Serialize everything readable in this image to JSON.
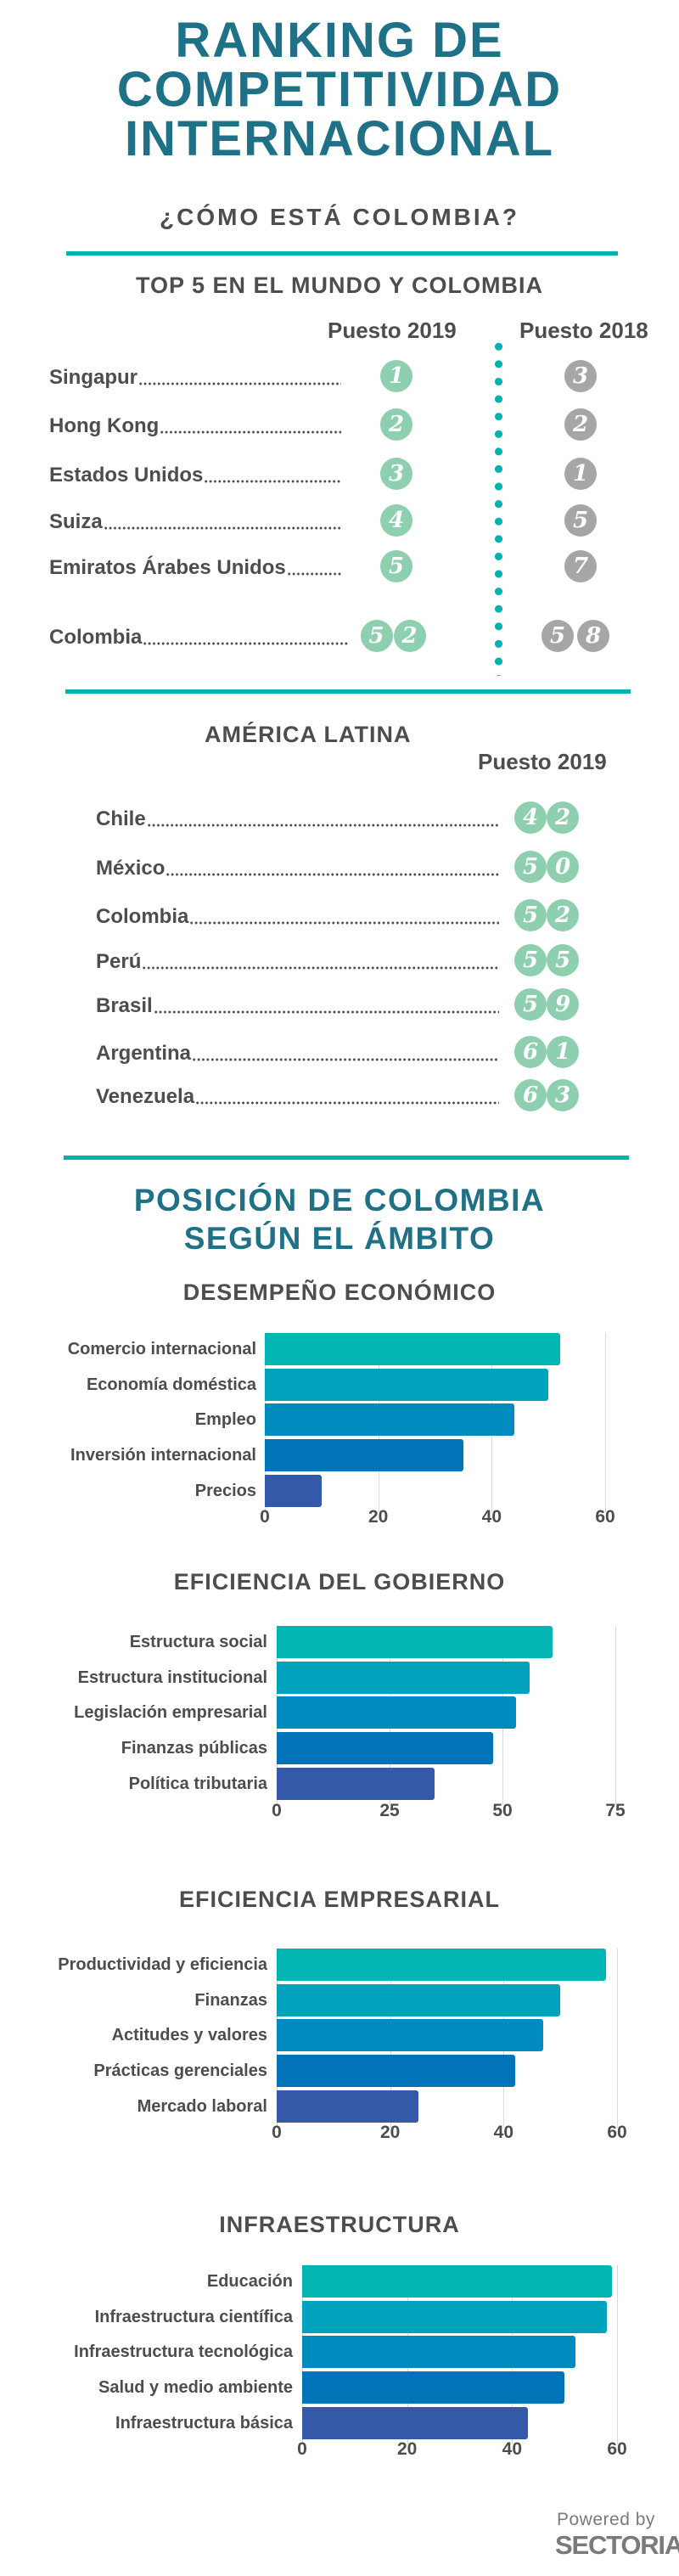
{
  "header": {
    "title_lines": [
      "RANKING DE",
      "COMPETITIVIDAD",
      "INTERNACIONAL"
    ],
    "question": "¿CÓMO ESTÁ COLOMBIA?"
  },
  "colors": {
    "title": "#1e7186",
    "text": "#4d4d4d",
    "rule": "#00b3b1",
    "badge_2019": "#8ecfb0",
    "badge_2018": "#a6a6a6"
  },
  "world": {
    "title": "TOP 5 EN EL MUNDO Y COLOMBIA",
    "col_2019": "Puesto 2019",
    "col_2018": "Puesto 2018",
    "rows": [
      {
        "country": "Singapur",
        "rank_2019": "1",
        "rank_2018": "3"
      },
      {
        "country": "Hong Kong",
        "rank_2019": "2",
        "rank_2018": "2"
      },
      {
        "country": "Estados Unidos",
        "rank_2019": "3",
        "rank_2018": "1"
      },
      {
        "country": "Suiza",
        "rank_2019": "4",
        "rank_2018": "5"
      },
      {
        "country": "Emiratos Árabes Unidos",
        "rank_2019": "5",
        "rank_2018": "7"
      },
      {
        "country": "Colombia",
        "rank_2019": "52",
        "rank_2018": "58"
      }
    ]
  },
  "latam": {
    "title": "AMÉRICA LATINA",
    "col_2019": "Puesto 2019",
    "rows": [
      {
        "country": "Chile",
        "rank_2019": "42"
      },
      {
        "country": "México",
        "rank_2019": "50"
      },
      {
        "country": "Colombia",
        "rank_2019": "52"
      },
      {
        "country": "Perú",
        "rank_2019": "55"
      },
      {
        "country": "Brasil",
        "rank_2019": "59"
      },
      {
        "country": "Argentina",
        "rank_2019": "61"
      },
      {
        "country": "Venezuela",
        "rank_2019": "63"
      }
    ]
  },
  "section": {
    "title_lines": [
      "POSICIÓN DE COLOMBIA",
      "SEGÚN EL ÁMBITO"
    ]
  },
  "chart_data": [
    {
      "type": "bar",
      "orientation": "horizontal",
      "title": "DESEMPEÑO ECONÓMICO",
      "categories": [
        "Comercio internacional",
        "Economía doméstica",
        "Empleo",
        "Inversión internacional",
        "Precios"
      ],
      "values": [
        52,
        50,
        44,
        35,
        10
      ],
      "xlim": [
        0,
        60
      ],
      "ticks": [
        "0",
        "20",
        "40",
        "60"
      ],
      "grid": true
    },
    {
      "type": "bar",
      "orientation": "horizontal",
      "title": "EFICIENCIA DEL GOBIERNO",
      "categories": [
        "Estructura social",
        "Estructura institucional",
        "Legislación empresarial",
        "Finanzas públicas",
        "Política tributaria"
      ],
      "values": [
        61,
        56,
        53,
        48,
        35
      ],
      "xlim": [
        0,
        75
      ],
      "ticks": [
        "0",
        "25",
        "50",
        "75"
      ],
      "grid": true
    },
    {
      "type": "bar",
      "orientation": "horizontal",
      "title": "EFICIENCIA EMPRESARIAL",
      "categories": [
        "Productividad y eficiencia",
        "Finanzas",
        "Actitudes y valores",
        "Prácticas gerenciales",
        "Mercado laboral"
      ],
      "values": [
        58,
        50,
        47,
        42,
        25
      ],
      "xlim": [
        0,
        60
      ],
      "ticks": [
        "0",
        "20",
        "40",
        "60"
      ],
      "grid": true
    },
    {
      "type": "bar",
      "orientation": "horizontal",
      "title": "INFRAESTRUCTURA",
      "categories": [
        "Educación",
        "Infraestructura científica",
        "Infraestructura tecnológica",
        "Salud y medio ambiente",
        "Infraestructura básica"
      ],
      "values": [
        59,
        58,
        52,
        50,
        43
      ],
      "xlim": [
        0,
        60
      ],
      "ticks": [
        "0",
        "20",
        "40",
        "60"
      ],
      "grid": true
    }
  ],
  "bar_colors": [
    "#00b5b2",
    "#00a2bc",
    "#008bbf",
    "#0073b9",
    "#3559a9"
  ],
  "footer": {
    "powered_by": "Powered by",
    "brand": "SECTORIAL"
  }
}
